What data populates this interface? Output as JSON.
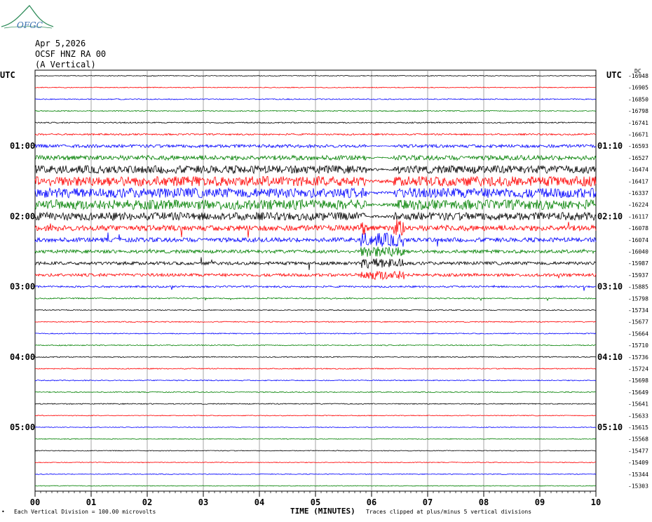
{
  "header": {
    "date": "Apr 5,2026",
    "station": "OCSF HNZ RA 00",
    "component": "(A Vertical)"
  },
  "utc_left": "UTC",
  "utc_right": "UTC",
  "dc_label": "DC",
  "footer": {
    "left_mark": "•",
    "division": "Each Vertical Division =  100.00 microvolts",
    "time_label": "TIME (MINUTES)",
    "clip_note": "Traces clipped at plus/minus 5 vertical divisions"
  },
  "logo_text": "OFGC",
  "colors": {
    "trace_cycle": [
      "#000000",
      "#ff0000",
      "#0000ff",
      "#008000"
    ],
    "grid": "#808080",
    "logo": "#2f8c5a"
  },
  "chart_data": {
    "type": "line",
    "xlabel": "TIME (MINUTES)",
    "x_ticks": [
      "00",
      "01",
      "02",
      "03",
      "04",
      "05",
      "06",
      "07",
      "08",
      "09",
      "10"
    ],
    "xlim": [
      0,
      10
    ],
    "left_time_labels": [
      {
        "row": 6,
        "label": "01:00"
      },
      {
        "row": 12,
        "label": "02:00"
      },
      {
        "row": 18,
        "label": "03:00"
      },
      {
        "row": 24,
        "label": "04:00"
      },
      {
        "row": 30,
        "label": "05:00"
      }
    ],
    "right_time_labels": [
      {
        "row": 6,
        "label": "01:10"
      },
      {
        "row": 12,
        "label": "02:10"
      },
      {
        "row": 18,
        "label": "03:10"
      },
      {
        "row": 24,
        "label": "04:10"
      },
      {
        "row": 30,
        "label": "05:10"
      }
    ],
    "dc_offsets": [
      "-16948",
      "-16905",
      "-16850",
      "-16798",
      "-16741",
      "-16671",
      "-16593",
      "-16527",
      "-16474",
      "-16417",
      "-16337",
      "-16224",
      "-16117",
      "-16078",
      "-16074",
      "-16040",
      "-15987",
      "-15937",
      "-15885",
      "-15798",
      "-15734",
      "-15677",
      "-15664",
      "-15710",
      "-15736",
      "-15724",
      "-15698",
      "-15649",
      "-15641",
      "-15633",
      "-15615",
      "-15568",
      "-15477",
      "-15409",
      "-15344",
      "-15303"
    ],
    "trace_amplitude": [
      0.4,
      0.4,
      0.5,
      0.5,
      0.6,
      0.8,
      1.6,
      2.4,
      4,
      5,
      5,
      5,
      4,
      2.8,
      2.2,
      1.7,
      1.6,
      1.5,
      0.9,
      0.6,
      0.5,
      0.5,
      0.5,
      0.5,
      0.5,
      0.5,
      0.5,
      0.5,
      0.5,
      0.4,
      0.4,
      0.4,
      0.4,
      0.4,
      0.4,
      0.4
    ]
  }
}
